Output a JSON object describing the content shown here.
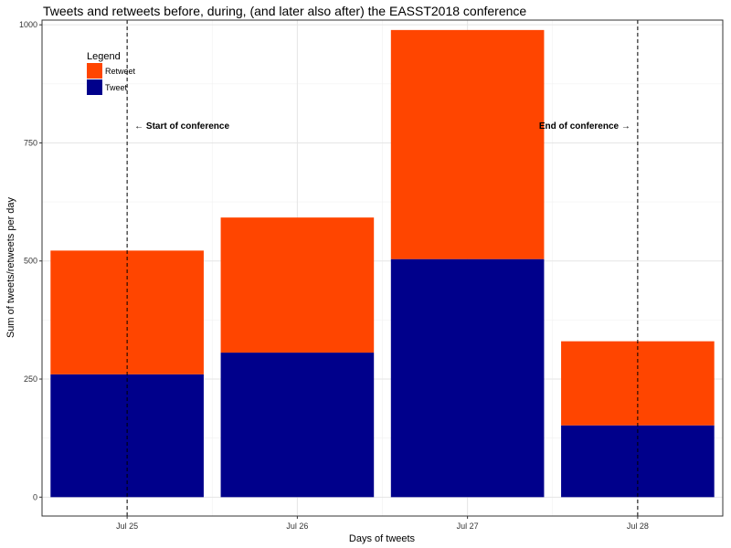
{
  "chart_data": {
    "type": "bar",
    "stacked": true,
    "title": "Tweets and retweets before, during, (and later also after) the EASST2018 conference",
    "xlabel": "Days of tweets",
    "ylabel": "Sum of tweets/retweets per day",
    "categories": [
      "Jul 25",
      "Jul 26",
      "Jul 27",
      "Jul 28"
    ],
    "ylim": [
      -40,
      1010
    ],
    "yticks": [
      0,
      250,
      500,
      750,
      1000
    ],
    "grid": true,
    "series": [
      {
        "name": "Tweet",
        "color": "#00008B",
        "values": [
          260,
          306,
          504,
          152
        ]
      },
      {
        "name": "Retweet",
        "color": "#FF4500",
        "values": [
          262,
          286,
          485,
          178
        ]
      }
    ],
    "legend": {
      "title": "Legend",
      "placement": "top-left",
      "items": [
        {
          "label": "Retweet",
          "color": "#FF4500"
        },
        {
          "label": "Tweet",
          "color": "#00008B"
        }
      ]
    },
    "vlines": [
      {
        "x": "Jul 25",
        "label": "←  Start of conference",
        "side": "right"
      },
      {
        "x": "Jul 28",
        "label": "End of conference →",
        "side": "left"
      }
    ],
    "annotation_y": 780
  }
}
